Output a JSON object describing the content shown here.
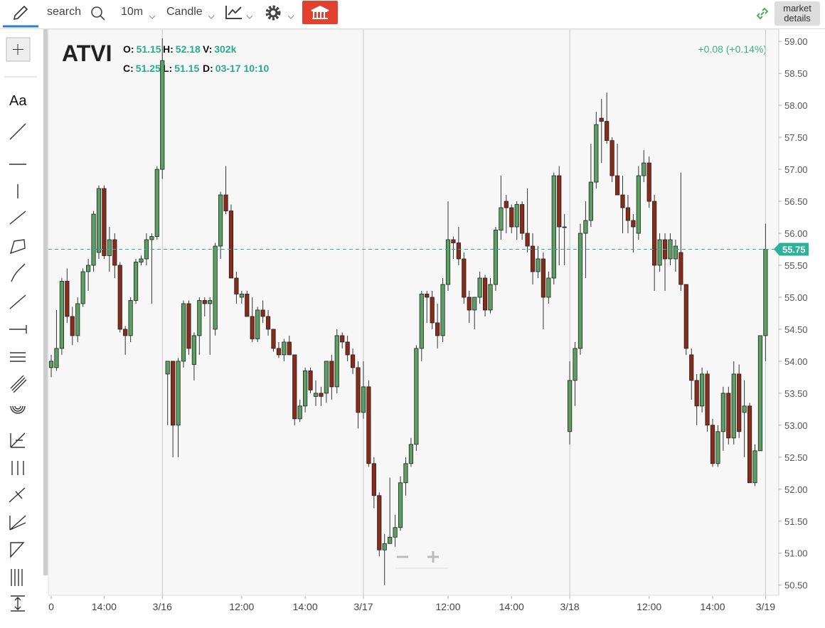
{
  "toolbar": {
    "search": "search",
    "interval": "10m",
    "chart_style": "Candle",
    "market_details": "market details"
  },
  "chart_data": {
    "type": "candlestick",
    "symbol": "ATVI",
    "legend": [
      {
        "label": "O:",
        "value": 51.15
      },
      {
        "label": "H:",
        "value": 52.18
      },
      {
        "label": "V:",
        "value": "302k"
      },
      {
        "label": "C:",
        "value": 51.25
      },
      {
        "label": "L:",
        "value": 51.15
      },
      {
        "label": "D:",
        "value": "03-17 10:10"
      }
    ],
    "change": "+0.08 (+0.14%)",
    "last_price": 55.75,
    "up_color": "#5b9f63",
    "down_color": "#8a2a18",
    "price_line_color": "#2bb39a",
    "xlim": [
      -0.54,
      137.1
    ],
    "ylim": [
      50.33,
      59.18
    ],
    "xticks": [
      {
        "value": 0,
        "label": "0"
      },
      {
        "value": 10,
        "label": "14:00"
      },
      {
        "value": 21,
        "label": "3/16"
      },
      {
        "value": 36,
        "label": "12:00"
      },
      {
        "value": 48,
        "label": "14:00"
      },
      {
        "value": 59,
        "label": "3/17"
      },
      {
        "value": 75,
        "label": "12:00"
      },
      {
        "value": 87,
        "label": "14:00"
      },
      {
        "value": 98,
        "label": "3/18"
      },
      {
        "value": 113,
        "label": "12:00"
      },
      {
        "value": 125,
        "label": "14:00"
      },
      {
        "value": 135,
        "label": "3/19"
      }
    ],
    "day_lines": [
      21,
      59,
      98,
      135
    ],
    "yticks": [
      {
        "value": 50.5,
        "label": "50.50"
      },
      {
        "value": 51,
        "label": "51.00"
      },
      {
        "value": 51.5,
        "label": "51.50"
      },
      {
        "value": 52,
        "label": "52.00"
      },
      {
        "value": 52.5,
        "label": "52.50"
      },
      {
        "value": 53,
        "label": "53.00"
      },
      {
        "value": 53.5,
        "label": "53.50"
      },
      {
        "value": 54,
        "label": "54.00"
      },
      {
        "value": 54.5,
        "label": "54.50"
      },
      {
        "value": 55,
        "label": "55.00"
      },
      {
        "value": 55.5,
        "label": "55.50"
      },
      {
        "value": 56,
        "label": "56.00"
      },
      {
        "value": 56.5,
        "label": "56.50"
      },
      {
        "value": 57,
        "label": "57.00"
      },
      {
        "value": 57.5,
        "label": "57.50"
      },
      {
        "value": 58,
        "label": "58.00"
      },
      {
        "value": 58.5,
        "label": "58.50"
      },
      {
        "value": 59,
        "label": "59.00"
      }
    ],
    "open": [
      53.9,
      53.9,
      54.2,
      55.25,
      54.7,
      54.4,
      54.9,
      55.4,
      55.5,
      55.7,
      56.7,
      55.65,
      55.9,
      55.5,
      54.5,
      54.4,
      54.95,
      55.55,
      55.6,
      55.9,
      55.95,
      57.0,
      53.8,
      54.0,
      53.0,
      54.0,
      54.9,
      53.95,
      54.4,
      54.95,
      54.9,
      54.5,
      55.8,
      56.6,
      56.35,
      55.3,
      55.0,
      55.05,
      54.7,
      54.35,
      54.8,
      54.7,
      54.5,
      54.2,
      54.1,
      54.3,
      54.1,
      53.1,
      53.3,
      53.85,
      53.45,
      53.5,
      53.5,
      54.0,
      53.6,
      54.4,
      54.3,
      54.1,
      53.9,
      53.2,
      53.6,
      52.4,
      51.9,
      51.05,
      51.15,
      51.25,
      51.4,
      52.1,
      52.4,
      52.7,
      54.2,
      55.05,
      55.0,
      54.6,
      54.4,
      55.2,
      55.9,
      55.85,
      55.6,
      55.0,
      54.8,
      55.0,
      55.3,
      54.8,
      55.2,
      56.05,
      56.5,
      56.4,
      56.1,
      56.45,
      56.0,
      55.8,
      55.4,
      55.6,
      55.0,
      55.3,
      56.9,
      56.1,
      52.9,
      53.7,
      54.2,
      56.0,
      56.2,
      56.8,
      57.8,
      57.75,
      57.45,
      56.9,
      56.6,
      56.4,
      56.2,
      56.0,
      56.9,
      57.1,
      56.5,
      55.5,
      55.9,
      55.6,
      55.6,
      55.7,
      55.2,
      54.1,
      53.7,
      53.3,
      53.8,
      53.0,
      52.4,
      52.9,
      53.5,
      52.8,
      53.8,
      53.2,
      53.3,
      52.1,
      52.6,
      54.4
    ],
    "high": [
      54.1,
      54.8,
      55.3,
      55.45,
      54.85,
      55.0,
      55.45,
      55.6,
      56.35,
      56.75,
      56.75,
      56.1,
      56.0,
      55.55,
      54.55,
      55.0,
      55.6,
      55.65,
      56.0,
      56.0,
      57.05,
      59.05,
      54.0,
      54.0,
      54.05,
      54.95,
      54.95,
      54.45,
      55.0,
      55.0,
      55.0,
      55.85,
      56.65,
      57.05,
      56.45,
      55.4,
      55.1,
      55.1,
      55.0,
      54.85,
      54.95,
      54.8,
      54.5,
      54.3,
      54.35,
      54.4,
      54.1,
      53.4,
      53.9,
      53.9,
      53.7,
      53.6,
      54.0,
      54.1,
      54.5,
      54.45,
      54.4,
      54.2,
      54.0,
      54.0,
      53.7,
      52.5,
      51.95,
      51.3,
      52.18,
      51.6,
      52.2,
      52.5,
      52.8,
      54.25,
      55.1,
      55.1,
      55.1,
      54.9,
      55.3,
      56.5,
      55.95,
      56.1,
      55.7,
      55.1,
      55.0,
      55.4,
      55.35,
      55.3,
      56.1,
      56.9,
      56.6,
      56.45,
      56.5,
      56.5,
      56.7,
      56.0,
      55.8,
      55.7,
      55.4,
      56.95,
      57.05,
      56.3,
      54.0,
      54.3,
      56.15,
      56.5,
      57.4,
      57.9,
      58.1,
      58.2,
      57.5,
      57.4,
      56.9,
      56.6,
      56.3,
      57.05,
      57.3,
      57.2,
      56.6,
      56.0,
      56.0,
      56.0,
      55.9,
      56.95,
      55.2,
      54.2,
      53.8,
      53.9,
      53.85,
      53.1,
      53.0,
      53.6,
      53.6,
      54.0,
      53.95,
      53.7,
      53.35,
      52.7,
      54.4,
      56.15
    ],
    "low": [
      53.75,
      53.85,
      54.1,
      54.6,
      54.25,
      54.3,
      54.85,
      55.1,
      55.4,
      55.6,
      55.6,
      55.4,
      55.3,
      54.45,
      54.1,
      54.3,
      54.9,
      55.5,
      55.5,
      54.9,
      55.9,
      56.85,
      53.0,
      52.5,
      52.5,
      53.9,
      54.1,
      53.7,
      54.1,
      54.7,
      54.1,
      54.4,
      55.6,
      56.3,
      55.3,
      54.9,
      54.9,
      54.7,
      54.3,
      54.3,
      54.6,
      54.4,
      54.15,
      54.05,
      54.0,
      54.1,
      53.0,
      53.05,
      53.2,
      53.5,
      53.3,
      53.3,
      53.35,
      53.4,
      53.5,
      54.2,
      54.0,
      53.8,
      52.95,
      53.1,
      52.35,
      51.7,
      50.95,
      50.5,
      51.15,
      51.1,
      51.35,
      51.9,
      52.35,
      52.6,
      54.0,
      54.6,
      54.5,
      54.2,
      54.3,
      55.1,
      55.6,
      55.5,
      54.9,
      54.6,
      54.5,
      54.9,
      54.7,
      54.75,
      55.1,
      55.9,
      56.0,
      56.0,
      55.9,
      55.9,
      55.7,
      55.2,
      55.3,
      54.5,
      54.9,
      55.2,
      55.5,
      55.5,
      52.7,
      53.3,
      54.1,
      55.3,
      56.1,
      56.7,
      57.1,
      57.4,
      56.8,
      56.6,
      56.0,
      56.0,
      55.7,
      55.9,
      56.8,
      56.4,
      55.1,
      55.4,
      55.1,
      55.5,
      55.4,
      55.1,
      54.1,
      53.4,
      53.0,
      53.2,
      52.9,
      52.35,
      52.35,
      52.6,
      52.7,
      52.7,
      52.8,
      52.5,
      52.1,
      52.05,
      52.6,
      54.0
    ],
    "close": [
      54.0,
      54.2,
      55.25,
      54.7,
      54.4,
      54.9,
      55.4,
      55.5,
      56.3,
      56.7,
      55.65,
      55.9,
      55.5,
      54.5,
      54.4,
      54.95,
      55.55,
      55.6,
      55.9,
      55.95,
      57.0,
      58.7,
      54.0,
      53.0,
      54.0,
      54.9,
      54.2,
      54.4,
      54.95,
      54.9,
      54.95,
      55.8,
      56.6,
      56.35,
      55.3,
      55.05,
      55.05,
      54.7,
      54.35,
      54.8,
      54.7,
      54.5,
      54.2,
      54.1,
      54.3,
      54.1,
      53.1,
      53.3,
      53.85,
      53.55,
      53.5,
      53.45,
      54.0,
      53.6,
      54.4,
      54.3,
      54.1,
      53.9,
      53.2,
      53.6,
      52.4,
      51.9,
      51.05,
      51.15,
      51.25,
      51.4,
      52.1,
      52.4,
      52.7,
      54.2,
      55.05,
      55.0,
      54.6,
      54.4,
      55.2,
      55.9,
      55.85,
      55.6,
      55.0,
      54.8,
      55.0,
      55.3,
      54.8,
      55.2,
      56.05,
      56.4,
      56.4,
      56.1,
      56.45,
      56.0,
      55.8,
      55.4,
      55.6,
      55.0,
      55.3,
      56.9,
      56.1,
      56.1,
      53.7,
      54.2,
      56.0,
      56.2,
      56.8,
      57.7,
      57.75,
      57.45,
      56.9,
      56.6,
      56.4,
      56.2,
      56.1,
      56.9,
      57.1,
      56.5,
      55.5,
      55.9,
      55.6,
      55.9,
      55.8,
      55.2,
      54.2,
      53.7,
      53.3,
      53.8,
      53.0,
      52.4,
      52.9,
      53.5,
      52.8,
      53.8,
      52.9,
      53.3,
      52.1,
      52.6,
      54.4,
      55.75
    ]
  }
}
